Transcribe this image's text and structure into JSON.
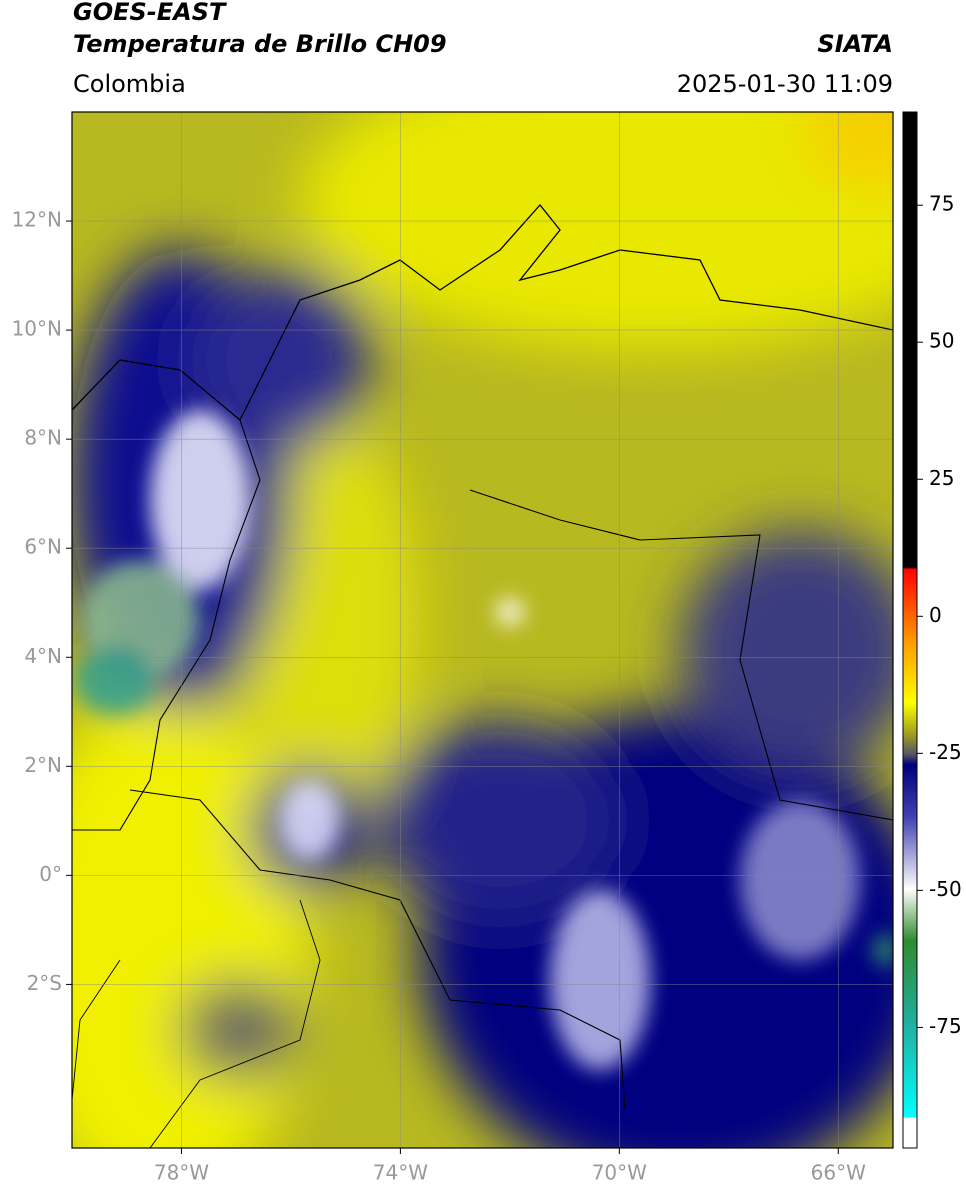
{
  "header": {
    "title": "GOES-EAST",
    "subtitle": "Temperatura de Brillo CH09",
    "source": "SIATA",
    "region": "Colombia",
    "datetime": "2025-01-30 11:09"
  },
  "map": {
    "lon_lim": [
      -80,
      -65
    ],
    "lat_lim": [
      -5,
      14
    ],
    "lon_ticks": [
      {
        "value": -78,
        "label": "78°W"
      },
      {
        "value": -74,
        "label": "74°W"
      },
      {
        "value": -70,
        "label": "70°W"
      },
      {
        "value": -66,
        "label": "66°W"
      }
    ],
    "lat_ticks": [
      {
        "value": -2,
        "label": "2°S"
      },
      {
        "value": 0,
        "label": "0°"
      },
      {
        "value": 2,
        "label": "2°N"
      },
      {
        "value": 4,
        "label": "4°N"
      },
      {
        "value": 6,
        "label": "6°N"
      },
      {
        "value": 8,
        "label": "8°N"
      },
      {
        "value": 10,
        "label": "10°N"
      },
      {
        "value": 12,
        "label": "12°N"
      }
    ]
  },
  "colorbar": {
    "lim": [
      -97,
      92
    ],
    "ticks": [
      75,
      50,
      25,
      0,
      -25,
      -50,
      -75
    ]
  }
}
